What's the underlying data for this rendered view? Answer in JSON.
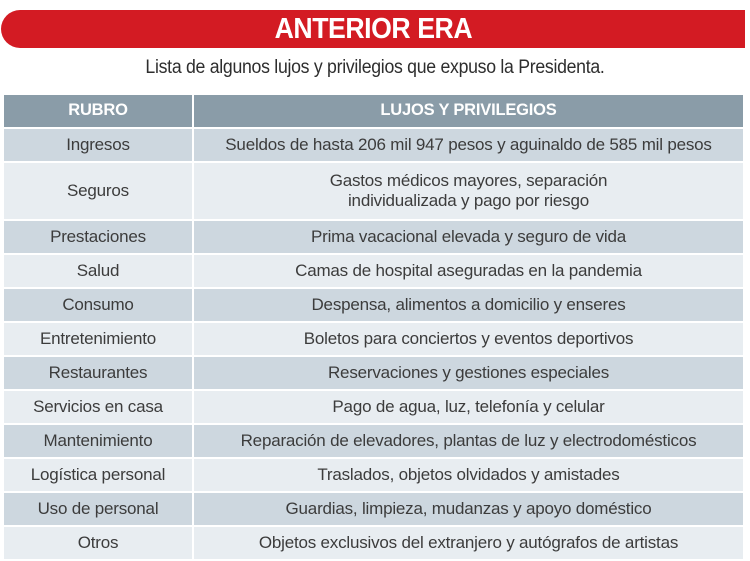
{
  "banner": {
    "title": "ANTERIOR ERA",
    "color": "#d31b23"
  },
  "subtitle": "Lista de algunos lujos y privilegios que expuso la Presidenta.",
  "table": {
    "headers": [
      "RUBRO",
      "LUJOS Y PRIVILEGIOS"
    ],
    "header_color": "#8a9ca8",
    "rows": [
      {
        "rubro": "Ingresos",
        "detalle": "Sueldos de hasta 206 mil 947 pesos y aguinaldo de 585 mil pesos"
      },
      {
        "rubro": "Seguros",
        "detalle": "Gastos médicos mayores, separación individualizada y pago por riesgo"
      },
      {
        "rubro": "Prestaciones",
        "detalle": "Prima vacacional elevada y seguro de vida"
      },
      {
        "rubro": "Salud",
        "detalle": "Camas de hospital aseguradas en la pandemia"
      },
      {
        "rubro": "Consumo",
        "detalle": "Despensa, alimentos a domicilio y enseres"
      },
      {
        "rubro": "Entretenimiento",
        "detalle": "Boletos para conciertos y eventos deportivos"
      },
      {
        "rubro": "Restaurantes",
        "detalle": "Reservaciones y gestiones especiales"
      },
      {
        "rubro": "Servicios en casa",
        "detalle": "Pago de agua, luz, telefonía y celular"
      },
      {
        "rubro": "Mantenimiento",
        "detalle": "Reparación de elevadores, plantas de luz y electrodomésticos"
      },
      {
        "rubro": "Logística personal",
        "detalle": "Traslados, objetos olvidados y amistades"
      },
      {
        "rubro": "Uso de personal",
        "detalle": "Guardias, limpieza, mudanzas y apoyo doméstico"
      },
      {
        "rubro": "Otros",
        "detalle": "Objetos exclusivos del extranjero y autógrafos de artistas"
      }
    ]
  }
}
